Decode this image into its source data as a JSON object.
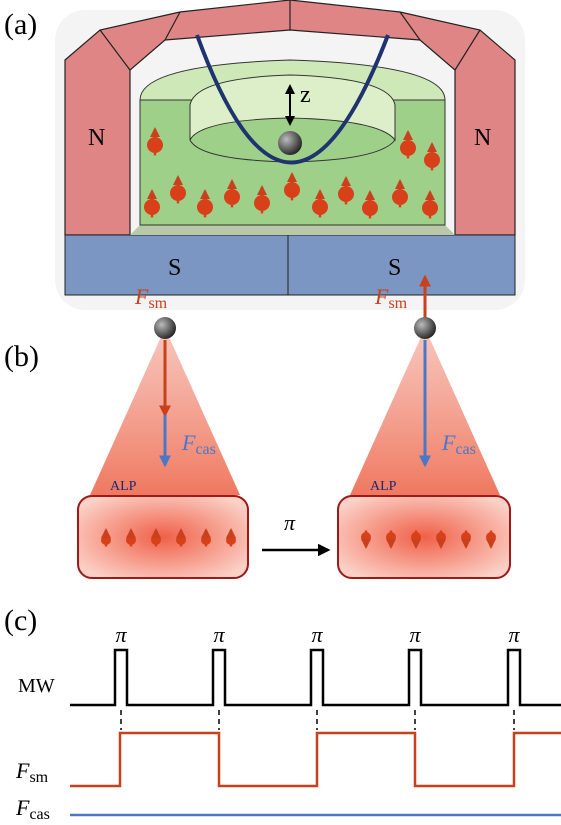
{
  "panel_a": {
    "label": "(a)",
    "north_left": "N",
    "north_right": "N",
    "south_left": "S",
    "south_right": "S",
    "axis_label": "z"
  },
  "panel_b": {
    "label": "(b)",
    "states": [
      {
        "force_sm": {
          "base": "F",
          "sub": "sm"
        },
        "force_cas": {
          "base": "F",
          "sub": "cas"
        },
        "source": "ALP"
      },
      {
        "force_sm": {
          "base": "F",
          "sub": "sm"
        },
        "force_cas": {
          "base": "F",
          "sub": "cas"
        },
        "source": "ALP"
      }
    ],
    "transition": "π"
  },
  "panel_c": {
    "label": "(c)",
    "pulses": [
      "π",
      "π",
      "π",
      "π",
      "π"
    ],
    "traces": [
      {
        "name": "MW"
      },
      {
        "name": {
          "base": "F",
          "sub": "sm"
        }
      },
      {
        "name": {
          "base": "F",
          "sub": "cas"
        }
      }
    ]
  }
}
